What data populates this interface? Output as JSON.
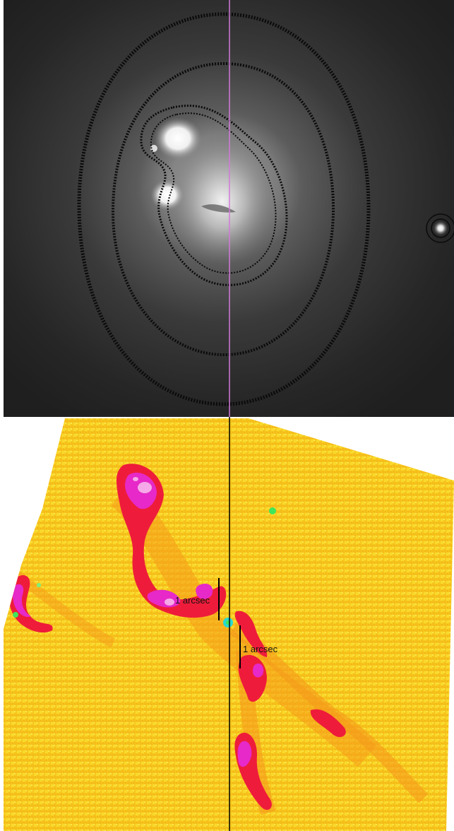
{
  "top_image": {
    "description_key": "galaxy-optical-image-with-isophote-contours",
    "background_color": "#1f1f1f",
    "contour_color": "#0a0a0a",
    "line_color": "#d07ad8"
  },
  "bottom_image": {
    "description_key": "dust-absorption-map",
    "colors": {
      "base": "#f7c81e",
      "base_light": "#f9e03a",
      "orange": "#f59a1a",
      "red": "#ee1c3a",
      "magenta": "#e629c8",
      "pink": "#f6a9e8",
      "green": "#3fe65a",
      "cyan": "#2ad8d0",
      "line": "#000000"
    },
    "scale_bars": [
      {
        "label": "1 arcsec"
      },
      {
        "label": "1 arcsec"
      }
    ]
  }
}
